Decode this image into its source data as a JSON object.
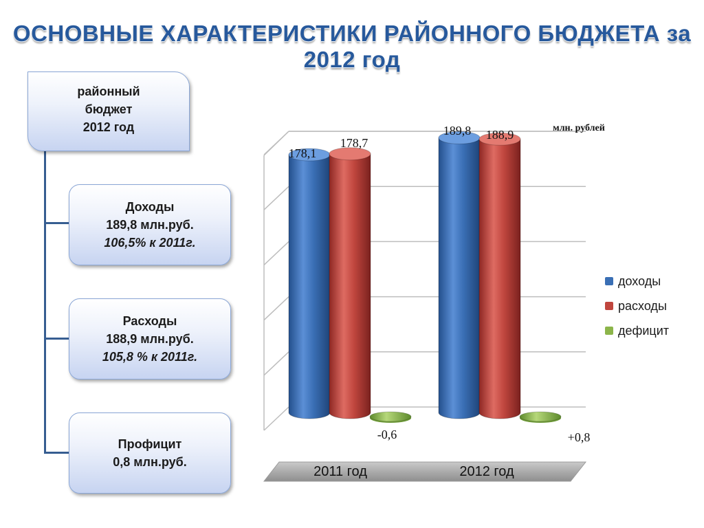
{
  "title": "ОСНОВНЫЕ ХАРАКТЕРИСТИКИ РАЙОННОГО БЮДЖЕТА за 2012 год",
  "main_box": {
    "line1": "районный",
    "line2": "бюджет",
    "line3": "2012 год"
  },
  "income_box": {
    "label": "Доходы",
    "amount": "189,8 млн.руб.",
    "growth": "106,5% к 2011г."
  },
  "expense_box": {
    "label": "Расходы",
    "amount": "188,9 млн.руб.",
    "growth": "105,8 % к 2011г."
  },
  "surplus_box": {
    "label": "Профицит",
    "amount": "0,8 млн.руб."
  },
  "colors": {
    "title": "#27599c",
    "box_border": "#8aa6d6",
    "connector": "#365d91",
    "income": "#3a6fb5",
    "expense": "#c0463e",
    "deficit": "#8cb54a"
  },
  "chart_data": {
    "type": "bar",
    "unit_label": "млн. рублей",
    "categories": [
      "2011 год",
      "2012 год"
    ],
    "series": [
      {
        "name": "доходы",
        "values": [
          178.1,
          189.8
        ],
        "labels": [
          "178,1",
          "189,8"
        ],
        "color": "#3a6fb5"
      },
      {
        "name": "расходы",
        "values": [
          178.7,
          188.9
        ],
        "labels": [
          "178,7",
          "188,9"
        ],
        "color": "#c0463e"
      },
      {
        "name": "дефицит",
        "values": [
          -0.6,
          0.8
        ],
        "labels": [
          "-0,6",
          "+0,8"
        ],
        "color": "#8cb54a"
      }
    ],
    "ylim": [
      0,
      200
    ],
    "grid": true,
    "legend": "right",
    "style": "3d-cylinder"
  }
}
